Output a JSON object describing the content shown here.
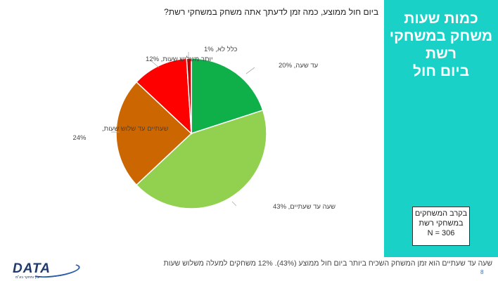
{
  "side_panel": {
    "title_lines": [
      "כמות שעות",
      "משחק במשחקי",
      "רשת",
      "ביום חול"
    ],
    "sample_lines": [
      "בקרב המשחקים",
      "במשחקי רשת",
      "N = 306"
    ],
    "color": "#1ad1c7"
  },
  "question": "ביום חול ממוצע, כמה זמן לדעתך אתה משחק במשחקי רשת?",
  "chart_data": {
    "type": "pie",
    "title": "",
    "slices": [
      {
        "label": "עד שעה",
        "value": 20,
        "text": "עד שעה, 20%",
        "color": "#0fb04a"
      },
      {
        "label": "שעה עד שעתיים",
        "value": 43,
        "text": "שעה עד שעתיים, 43%",
        "color": "#92d050"
      },
      {
        "label": "שעתיים עד שלוש שעות",
        "value": 24,
        "text": "שעתיים עד שלוש שעות,",
        "text2": "24%",
        "color": "#cc6600"
      },
      {
        "label": "יותר משלוש שעות",
        "value": 12,
        "text": "יותר משלוש שעות, 12%",
        "color": "#ff0000"
      },
      {
        "label": "כלל לא",
        "value": 1,
        "text": "כלל לא, 1%",
        "color": "#c00000"
      }
    ]
  },
  "footer": {
    "note": "שעה עד שעתיים הוא זמן המשחק השכיח ביותר ביום חול ממוצע (43%). 12% משחקים למעלה משלוש שעות",
    "page_number": "8"
  },
  "logo": {
    "text": "DATA",
    "tagline": "ייעוץ ומחקר בע\"מ"
  }
}
